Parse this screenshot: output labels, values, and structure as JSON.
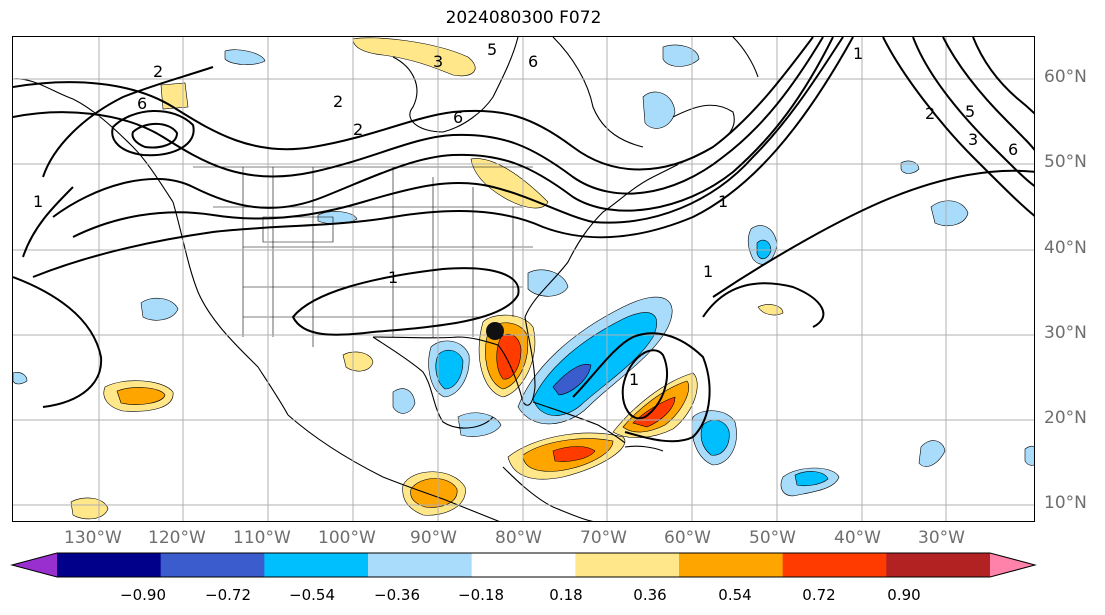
{
  "title": "2024080300 F072",
  "lat_labels": [
    "60°N",
    "50°N",
    "40°N",
    "30°N",
    "20°N",
    "10°N"
  ],
  "lon_labels": [
    "130°W",
    "120°W",
    "110°W",
    "100°W",
    "90°W",
    "80°W",
    "70°W",
    "60°W",
    "50°W",
    "40°W",
    "30°W"
  ],
  "contour_labels": [
    "2",
    "6",
    "2",
    "2",
    "6",
    "6",
    "5",
    "3",
    "1",
    "1",
    "1",
    "1",
    "1",
    "1",
    "2",
    "5",
    "3",
    "6"
  ],
  "colorbar": {
    "tick_labels": [
      "−0.90",
      "−0.72",
      "−0.54",
      "−0.36",
      "−0.18",
      "0.18",
      "0.36",
      "0.54",
      "0.72",
      "0.90"
    ],
    "colors": [
      "#9a2fcf",
      "#00008b",
      "#3a5ccc",
      "#00bfff",
      "#a9dcfb",
      "#ffffff",
      "#ffe78a",
      "#ffa500",
      "#ff3b00",
      "#b22222",
      "#ff82ab"
    ]
  },
  "colors": {
    "grid": "#b0b0b0",
    "contour": "#000000",
    "coast": "#000000",
    "axis_text": "#6e6e6e"
  }
}
